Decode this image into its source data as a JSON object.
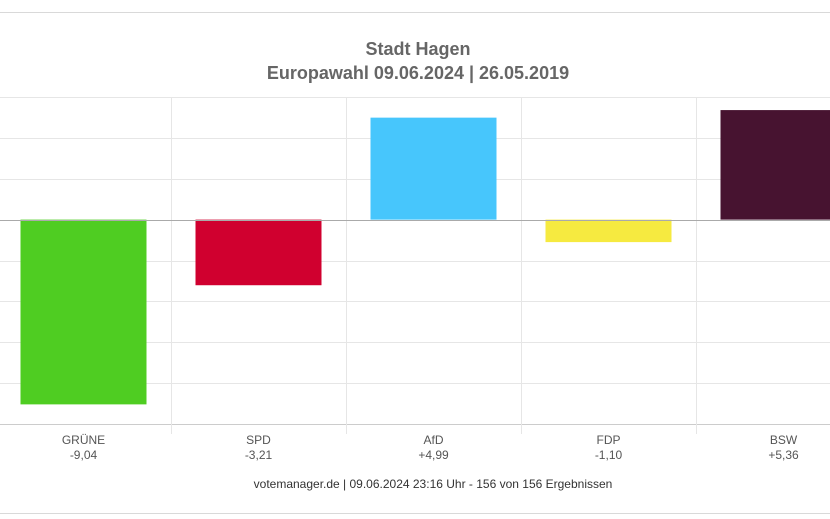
{
  "chart_data": {
    "type": "bar",
    "title": "Stadt Hagen",
    "subtitle": "Europawahl 09.06.2024  | 26.05.2019",
    "xlabel": "",
    "ylabel": "",
    "categories": [
      "GRÜNE",
      "SPD",
      "AfD",
      "FDP",
      "BSW"
    ],
    "values": [
      -9.04,
      -3.21,
      4.99,
      -1.1,
      5.36
    ],
    "value_labels": [
      "-9,04",
      "-3,21",
      "+4,99",
      "-1,10",
      "+5,36"
    ],
    "colors": [
      "#4fcd22",
      "#d0002f",
      "#47c6fc",
      "#f6ea40",
      "#471330"
    ],
    "ylim": [
      -10,
      6
    ],
    "y_grid_step": 2,
    "grid": true,
    "legend": "none"
  },
  "footer": "votemanager.de | 09.06.2024 23:16 Uhr - 156 von 156 Ergebnissen"
}
